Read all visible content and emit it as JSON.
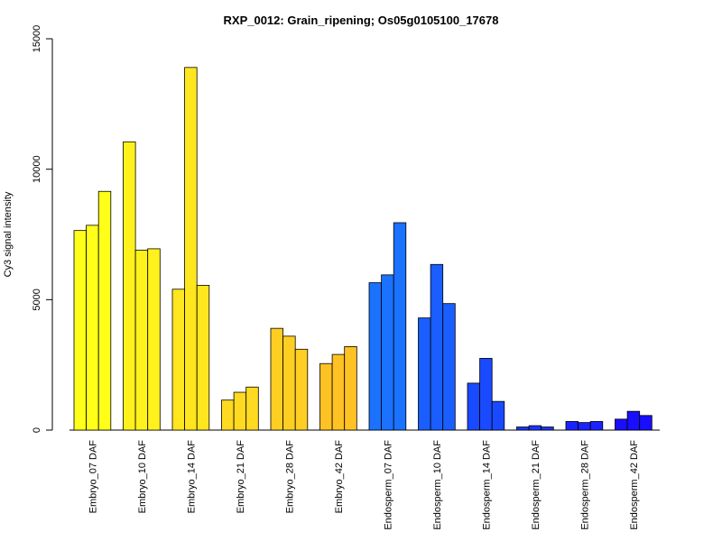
{
  "chart_data": {
    "type": "bar",
    "title": "RXP_0012: Grain_ripening; Os05g0105100_17678",
    "xlabel": "",
    "ylabel": "Cy3 signal intensity",
    "ylim": [
      0,
      15000
    ],
    "yticks": [
      0,
      5000,
      10000,
      15000
    ],
    "grid": false,
    "legend": "none",
    "bars_per_group": 3,
    "categories": [
      "Embryo_07 DAF",
      "Embryo_10 DAF",
      "Embryo_14 DAF",
      "Embryo_21 DAF",
      "Embryo_28 DAF",
      "Embryo_42 DAF",
      "Endosperm_07 DAF",
      "Endosperm_10 DAF",
      "Endosperm_14 DAF",
      "Endosperm_21 DAF",
      "Endosperm_28 DAF",
      "Endosperm_42 DAF"
    ],
    "values": [
      [
        7650,
        7850,
        9150
      ],
      [
        11050,
        6900,
        6950
      ],
      [
        5400,
        13900,
        5550
      ],
      [
        1150,
        1450,
        1650
      ],
      [
        3900,
        3600,
        3100
      ],
      [
        2550,
        2900,
        3200
      ],
      [
        5650,
        5950,
        7950
      ],
      [
        4300,
        6350,
        4850
      ],
      [
        1800,
        2750,
        1100
      ],
      [
        120,
        170,
        120
      ],
      [
        330,
        290,
        330
      ],
      [
        420,
        720,
        560
      ]
    ],
    "group_colors": [
      "#ffff1a",
      "#fff21c",
      "#ffe61e",
      "#ffda20",
      "#ffce22",
      "#ffc224",
      "#1a72ff",
      "#1a5eff",
      "#1a4aff",
      "#1a36ff",
      "#1a22ff",
      "#1a0eff"
    ]
  }
}
